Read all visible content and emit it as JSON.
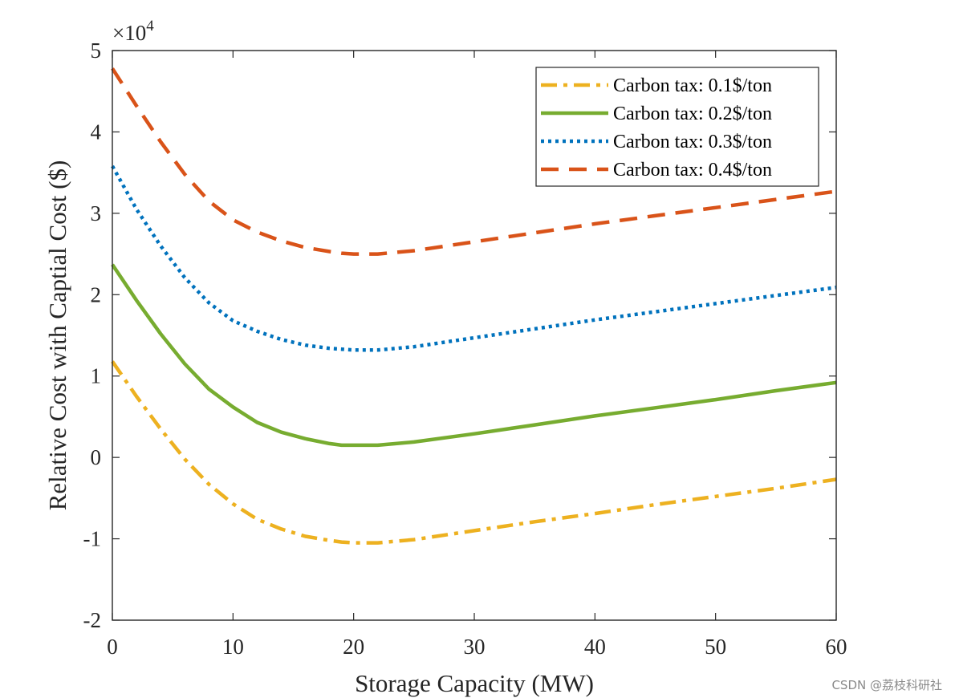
{
  "chart_data": {
    "type": "line",
    "xlabel": "Storage Capacity (MW)",
    "ylabel": "Relative Cost with Captial Cost ($)",
    "y_exponent_label": "×10",
    "y_exponent_power": "4",
    "xlim": [
      0,
      60
    ],
    "ylim": [
      -2,
      5
    ],
    "x_ticks": [
      0,
      10,
      20,
      30,
      40,
      50,
      60
    ],
    "y_ticks": [
      -2,
      -1,
      0,
      1,
      2,
      3,
      4,
      5
    ],
    "grid": false,
    "legend_position": "top-right",
    "x": [
      0,
      2,
      4,
      6,
      8,
      10,
      12,
      14,
      16,
      18,
      19,
      20,
      22,
      25,
      30,
      35,
      40,
      45,
      50,
      55,
      60
    ],
    "series": [
      {
        "name": "Carbon tax: 0.1$/ton",
        "color": "#EDB120",
        "dash": "dash-dot",
        "values": [
          1.18,
          0.75,
          0.35,
          -0.02,
          -0.33,
          -0.57,
          -0.76,
          -0.88,
          -0.97,
          -1.02,
          -1.04,
          -1.05,
          -1.05,
          -1.01,
          -0.9,
          -0.79,
          -0.69,
          -0.58,
          -0.48,
          -0.38,
          -0.27
        ]
      },
      {
        "name": "Carbon tax: 0.2$/ton",
        "color": "#77AC30",
        "dash": "solid",
        "values": [
          2.37,
          1.93,
          1.52,
          1.15,
          0.84,
          0.62,
          0.43,
          0.31,
          0.23,
          0.17,
          0.15,
          0.15,
          0.15,
          0.19,
          0.29,
          0.4,
          0.51,
          0.61,
          0.71,
          0.82,
          0.92
        ]
      },
      {
        "name": "Carbon tax: 0.3$/ton",
        "color": "#0072BD",
        "dash": "dotted",
        "values": [
          3.58,
          3.05,
          2.6,
          2.21,
          1.9,
          1.68,
          1.55,
          1.45,
          1.38,
          1.34,
          1.33,
          1.32,
          1.32,
          1.36,
          1.47,
          1.58,
          1.69,
          1.79,
          1.89,
          1.99,
          2.09
        ]
      },
      {
        "name": "Carbon tax: 0.4$/ton",
        "color": "#D95319",
        "dash": "dashed",
        "values": [
          4.78,
          4.32,
          3.88,
          3.48,
          3.15,
          2.92,
          2.77,
          2.66,
          2.58,
          2.53,
          2.51,
          2.5,
          2.5,
          2.54,
          2.65,
          2.76,
          2.87,
          2.97,
          3.07,
          3.17,
          3.27
        ]
      }
    ]
  },
  "watermark": "CSDN @荔枝科研社"
}
